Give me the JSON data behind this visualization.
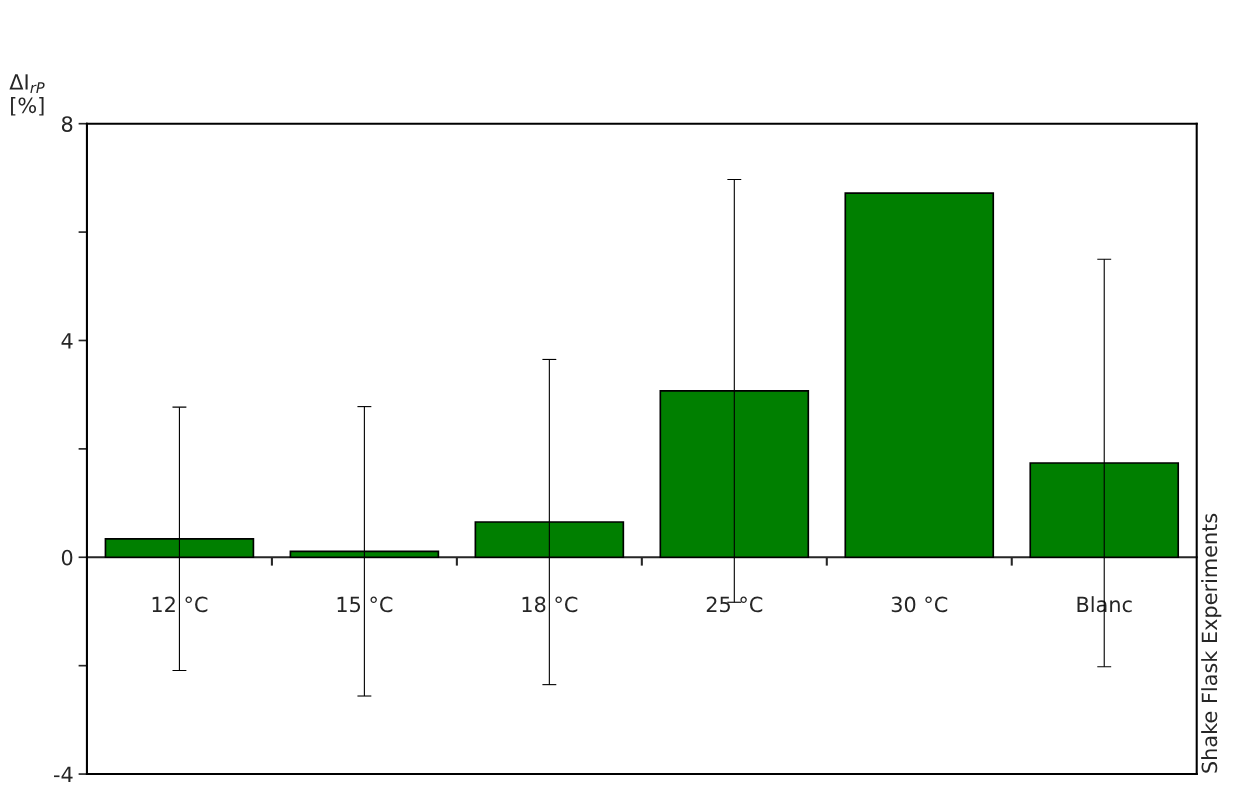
{
  "chart_data": {
    "type": "bar",
    "ylabel": "ΔI$_{rP}$\n[%]",
    "annotations": [
      "Shake Flask Experiments"
    ],
    "categories": [
      "12 °C",
      "15 °C",
      "18 °C",
      "25 °C",
      "30 °C",
      "Blanc"
    ],
    "values": [
      0.34,
      0.11,
      0.65,
      3.07,
      6.72,
      1.74
    ],
    "errors": [
      2.43,
      2.67,
      3.0,
      3.9,
      null,
      3.76
    ],
    "color": "#007f00",
    "ylim": [
      -4,
      8
    ],
    "yticks": [
      -4,
      {
        "value": -2,
        "label": null
      },
      0,
      {
        "value": 2,
        "label": null
      },
      4,
      {
        "value": 6,
        "label": null
      },
      8
    ],
    "grid": false,
    "legend": false
  }
}
